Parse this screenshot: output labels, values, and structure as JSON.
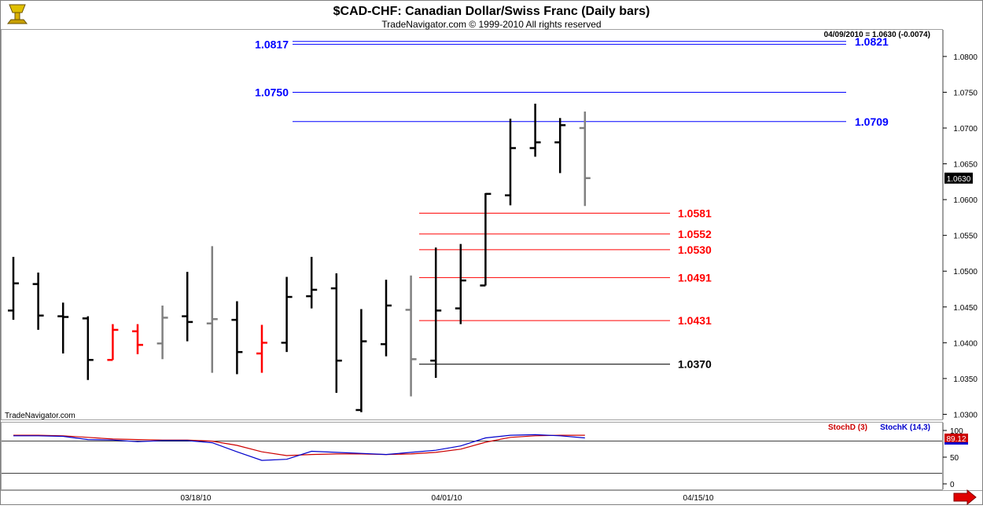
{
  "header": {
    "title": "$CAD-CHF:  Canadian Dollar/Swiss Franc  (Daily bars)",
    "copyright": "TradeNavigator.com © 1999-2010 All rights reserved",
    "last_quote": "04/09/2010 = 1.0630 (-0.0074)",
    "watermark": "TradeNavigator.com"
  },
  "icons": {
    "top_left": "trophy-logo-icon",
    "bottom_right": "scroll-right-arrow-icon"
  },
  "colors": {
    "up": "#000000",
    "down": "#ff0000",
    "neutral": "#808080",
    "level_blue": "#0000ff",
    "level_red": "#ff0000",
    "level_black": "#000000",
    "stoch_d": "#cc0000",
    "stoch_k": "#0000cc"
  },
  "chart_data": {
    "type": "ohlc",
    "ylim": [
      1.0295,
      1.0835
    ],
    "y_ticks": [
      "1.0300",
      "1.0350",
      "1.0400",
      "1.0450",
      "1.0500",
      "1.0550",
      "1.0600",
      "1.0650",
      "1.0700",
      "1.0750",
      "1.0800"
    ],
    "price_tag": "1.0630",
    "x_ticks": [
      "03/18/10",
      "04/01/10",
      "04/15/10"
    ],
    "bars": [
      {
        "o": 1.0445,
        "h": 1.052,
        "l": 1.0432,
        "c": 1.0483,
        "color": "black"
      },
      {
        "o": 1.0482,
        "h": 1.0498,
        "l": 1.0418,
        "c": 1.0438,
        "color": "black"
      },
      {
        "o": 1.0437,
        "h": 1.0456,
        "l": 1.0385,
        "c": 1.0436,
        "color": "black"
      },
      {
        "o": 1.0434,
        "h": 1.0437,
        "l": 1.0348,
        "c": 1.0376,
        "color": "black"
      },
      {
        "o": 1.0376,
        "h": 1.0426,
        "l": 1.0376,
        "c": 1.0418,
        "color": "red"
      },
      {
        "o": 1.0416,
        "h": 1.0426,
        "l": 1.0384,
        "c": 1.0397,
        "color": "red"
      },
      {
        "o": 1.0399,
        "h": 1.0452,
        "l": 1.0377,
        "c": 1.0435,
        "color": "gray"
      },
      {
        "o": 1.0437,
        "h": 1.0499,
        "l": 1.0402,
        "c": 1.0429,
        "color": "black"
      },
      {
        "o": 1.0427,
        "h": 1.0535,
        "l": 1.0358,
        "c": 1.0433,
        "color": "gray"
      },
      {
        "o": 1.0432,
        "h": 1.0458,
        "l": 1.0356,
        "c": 1.0387,
        "color": "black"
      },
      {
        "o": 1.0385,
        "h": 1.0425,
        "l": 1.0358,
        "c": 1.04,
        "color": "red"
      },
      {
        "o": 1.04,
        "h": 1.0492,
        "l": 1.0387,
        "c": 1.0464,
        "color": "black"
      },
      {
        "o": 1.0465,
        "h": 1.052,
        "l": 1.0448,
        "c": 1.0474,
        "color": "black"
      },
      {
        "o": 1.0476,
        "h": 1.0497,
        "l": 1.033,
        "c": 1.0375,
        "color": "black"
      },
      {
        "o": 1.0306,
        "h": 1.0447,
        "l": 1.0303,
        "c": 1.0402,
        "color": "black"
      },
      {
        "o": 1.0398,
        "h": 1.0488,
        "l": 1.0381,
        "c": 1.0452,
        "color": "black"
      },
      {
        "o": 1.0446,
        "h": 1.0494,
        "l": 1.0325,
        "c": 1.0377,
        "color": "gray"
      },
      {
        "o": 1.0375,
        "h": 1.0533,
        "l": 1.0351,
        "c": 1.0445,
        "color": "black"
      },
      {
        "o": 1.0448,
        "h": 1.0538,
        "l": 1.0426,
        "c": 1.0487,
        "color": "black"
      },
      {
        "o": 1.048,
        "h": 1.0609,
        "l": 1.048,
        "c": 1.0608,
        "color": "black"
      },
      {
        "o": 1.0606,
        "h": 1.0713,
        "l": 1.0592,
        "c": 1.0672,
        "color": "black"
      },
      {
        "o": 1.0672,
        "h": 1.0734,
        "l": 1.066,
        "c": 1.068,
        "color": "black"
      },
      {
        "o": 1.068,
        "h": 1.0714,
        "l": 1.0637,
        "c": 1.0704,
        "color": "black"
      },
      {
        "o": 1.07,
        "h": 1.0723,
        "l": 1.0591,
        "c": 1.063,
        "color": "gray"
      }
    ],
    "levels": [
      {
        "label": "1.0817",
        "value": 1.0817,
        "color": "blue",
        "side": "left"
      },
      {
        "label": "1.0821",
        "value": 1.0821,
        "color": "blue",
        "side": "right"
      },
      {
        "label": "1.0750",
        "value": 1.075,
        "color": "blue",
        "side": "left"
      },
      {
        "label": "1.0709",
        "value": 1.0709,
        "color": "blue",
        "side": "right"
      },
      {
        "label": "1.0581",
        "value": 1.0581,
        "color": "red",
        "side": "right"
      },
      {
        "label": "1.0552",
        "value": 1.0552,
        "color": "red",
        "side": "right"
      },
      {
        "label": "1.0530",
        "value": 1.053,
        "color": "red",
        "side": "right"
      },
      {
        "label": "1.0491",
        "value": 1.0491,
        "color": "red",
        "side": "right"
      },
      {
        "label": "1.0431",
        "value": 1.0431,
        "color": "red",
        "side": "right"
      },
      {
        "label": "1.0370",
        "value": 1.037,
        "color": "black",
        "side": "right"
      }
    ],
    "stochastic": {
      "legend_d": "StochD (3)",
      "legend_k": "StochK (14,3)",
      "ylim": [
        0,
        100
      ],
      "y_ticks": [
        "100",
        "50",
        "0"
      ],
      "value_tag": "89.12",
      "stoch_d": [
        91,
        91,
        90,
        87,
        84,
        83,
        82,
        82,
        80,
        72,
        60,
        53,
        55,
        56,
        56,
        55,
        56,
        59,
        65,
        78,
        87,
        90,
        91,
        91
      ],
      "stoch_k": [
        90,
        90,
        89,
        83,
        82,
        79,
        81,
        81,
        77,
        60,
        44,
        46,
        61,
        59,
        57,
        55,
        59,
        63,
        71,
        86,
        91,
        92,
        90,
        86
      ]
    }
  }
}
